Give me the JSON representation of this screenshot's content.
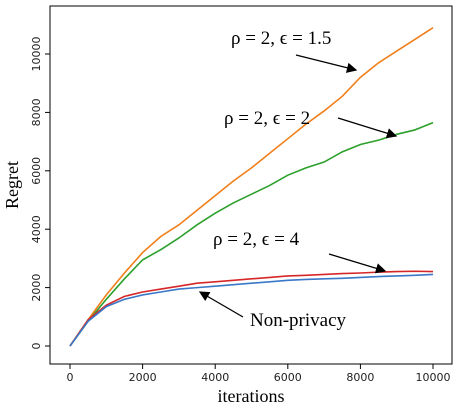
{
  "chart_data": {
    "type": "line",
    "x_label": "iterations",
    "y_label": "Regret",
    "x": [
      0,
      500,
      1000,
      1500,
      2000,
      2500,
      3000,
      3500,
      4000,
      4500,
      5000,
      5500,
      6000,
      6500,
      7000,
      7500,
      8000,
      8500,
      9000,
      9500,
      10000
    ],
    "xlim": [
      -551,
      10523
    ],
    "xticks": [
      0,
      2000,
      4000,
      6000,
      8000,
      10000
    ],
    "ylim": [
      -616,
      11644
    ],
    "yticks": [
      0,
      2000,
      4000,
      6000,
      8000,
      10000
    ],
    "series": [
      {
        "name": "ρ = 2, ϵ = 1.5",
        "color": "#f07f1a",
        "values": [
          0,
          900,
          1750,
          2500,
          3200,
          3750,
          4150,
          4650,
          5150,
          5650,
          6100,
          6600,
          7100,
          7600,
          8050,
          8550,
          9200,
          9700,
          10100,
          10500,
          10900
        ]
      },
      {
        "name": "ρ = 2, ϵ = 2",
        "color": "#2ca02c",
        "values": [
          0,
          850,
          1600,
          2300,
          2950,
          3300,
          3700,
          4150,
          4550,
          4900,
          5200,
          5500,
          5850,
          6100,
          6300,
          6650,
          6900,
          7050,
          7250,
          7400,
          7650
        ]
      },
      {
        "name": "ρ = 2, ϵ = 4",
        "color": "#d62728",
        "values": [
          0,
          900,
          1400,
          1700,
          1850,
          1950,
          2050,
          2150,
          2200,
          2250,
          2300,
          2350,
          2400,
          2420,
          2450,
          2480,
          2500,
          2530,
          2550,
          2560,
          2550
        ]
      },
      {
        "name": "Non-privacy",
        "color": "#3a78c8",
        "values": [
          0,
          850,
          1350,
          1600,
          1750,
          1850,
          1950,
          2000,
          2050,
          2100,
          2150,
          2200,
          2250,
          2280,
          2300,
          2320,
          2350,
          2380,
          2400,
          2420,
          2450
        ]
      }
    ]
  }
}
